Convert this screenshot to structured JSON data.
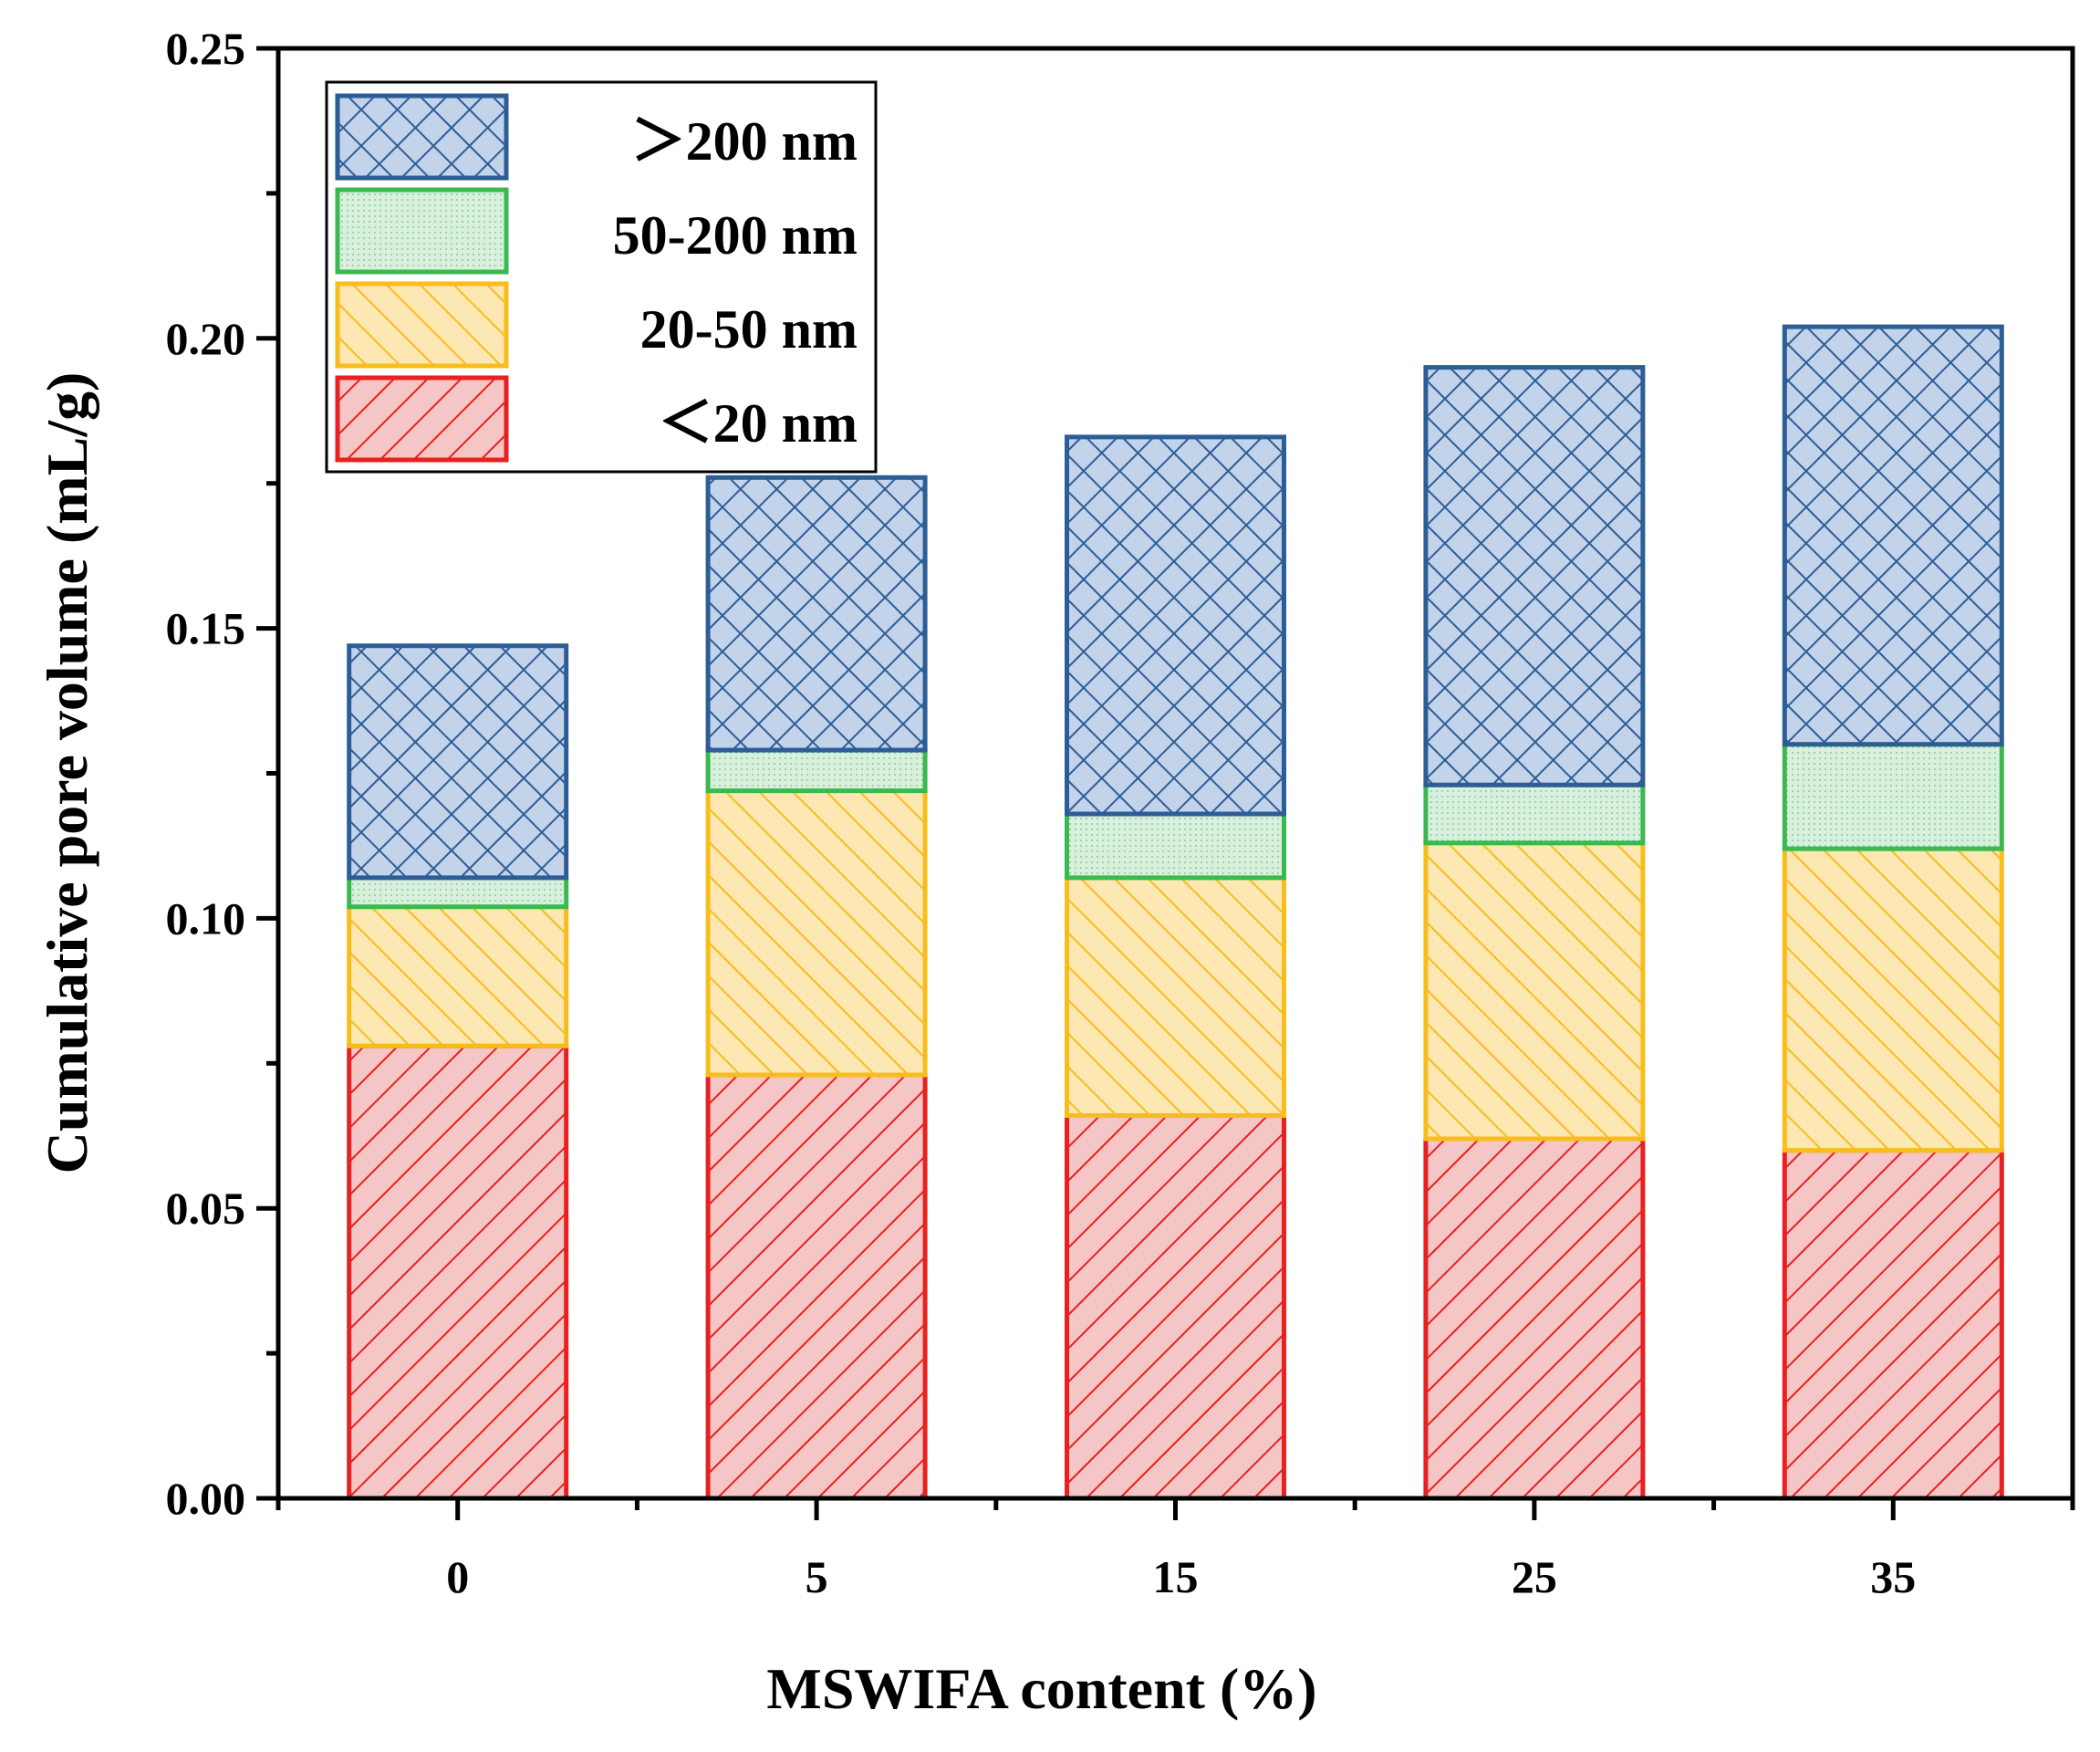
{
  "chart_data": {
    "type": "bar",
    "stacked": true,
    "title": "",
    "xlabel": "MSWIFA content (%)",
    "ylabel": "Cumulative pore volume (mL/g)",
    "ylim": [
      0,
      0.25
    ],
    "yticks": [
      "0.00",
      "0.05",
      "0.10",
      "0.15",
      "0.20",
      "0.25"
    ],
    "categories": [
      "0",
      "5",
      "15",
      "25",
      "35"
    ],
    "legend_position": "top-left",
    "grid": false,
    "series": [
      {
        "name": "<20  nm",
        "legend_label": "＜20  nm",
        "values": [
          0.078,
          0.073,
          0.066,
          0.062,
          0.06
        ],
        "stroke": "#e8201f",
        "fill": "#f4c6c6",
        "pattern": "diag-fwd"
      },
      {
        "name": "20-50  nm",
        "legend_label": "20-50  nm",
        "values": [
          0.024,
          0.049,
          0.041,
          0.051,
          0.052
        ],
        "stroke": "#f7bd1b",
        "fill": "#fde7b3",
        "pattern": "diag-back"
      },
      {
        "name": "50-200 nm",
        "legend_label": "50-200 nm",
        "values": [
          0.005,
          0.007,
          0.011,
          0.01,
          0.018
        ],
        "stroke": "#39b94f",
        "fill": "#cdebd4",
        "pattern": "dots"
      },
      {
        "name": ">200 nm",
        "legend_label": "＞200 nm",
        "values": [
          0.04,
          0.047,
          0.065,
          0.072,
          0.072
        ],
        "stroke": "#2d5d96",
        "fill": "#c2d3ea",
        "pattern": "cross"
      }
    ]
  }
}
